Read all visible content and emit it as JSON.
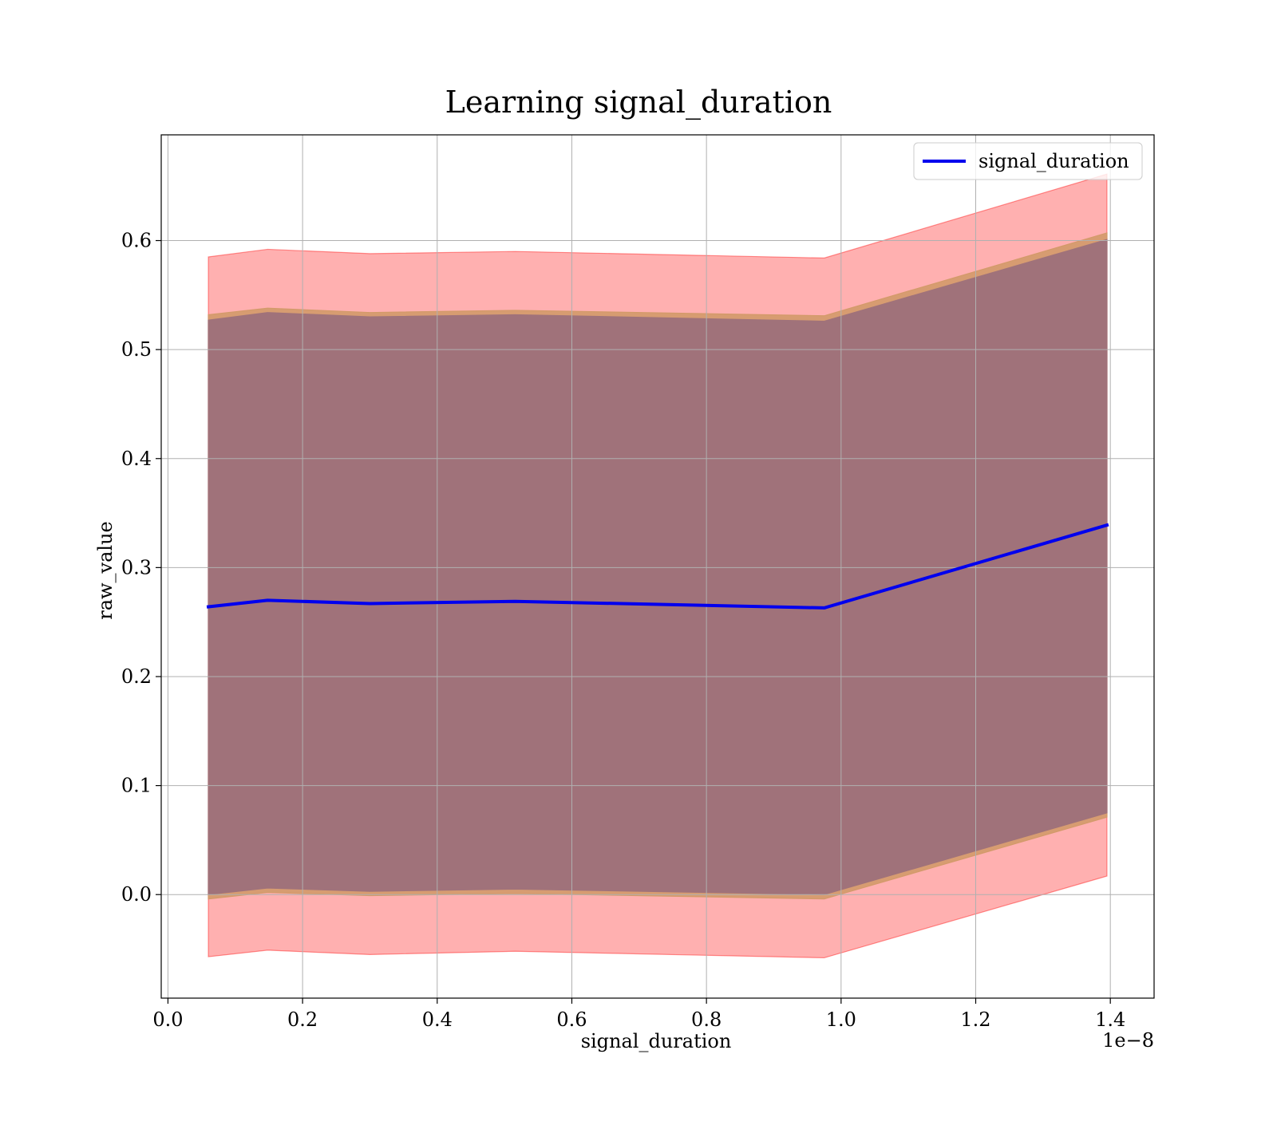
{
  "chart_data": {
    "type": "line",
    "title": "Learning signal_duration",
    "xlabel": "signal_duration",
    "ylabel": "raw_value",
    "x_offset_label": "1e−8",
    "xlim": [
      -0.01,
      1.465
    ],
    "ylim": [
      -0.095,
      0.697
    ],
    "x_ticks": [
      0.0,
      0.2,
      0.4,
      0.6,
      0.8,
      1.0,
      1.2,
      1.4
    ],
    "x_tick_labels": [
      "0.0",
      "0.2",
      "0.4",
      "0.6",
      "0.8",
      "1.0",
      "1.2",
      "1.4"
    ],
    "y_ticks": [
      0.0,
      0.1,
      0.2,
      0.3,
      0.4,
      0.5,
      0.6
    ],
    "y_tick_labels": [
      "0.0",
      "0.1",
      "0.2",
      "0.3",
      "0.4",
      "0.5",
      "0.6"
    ],
    "grid": true,
    "legend_position": "top-right",
    "x": [
      0.06,
      0.148,
      0.3,
      0.516,
      0.975,
      1.395
    ],
    "series": [
      {
        "name": "signal_duration",
        "color": "#0000ee",
        "values": [
          0.264,
          0.27,
          0.267,
          0.269,
          0.263,
          0.339
        ]
      }
    ],
    "bands": [
      {
        "kind": "outer",
        "color": "#ff0000",
        "opacity": 0.31,
        "upper": [
          0.585,
          0.592,
          0.588,
          0.59,
          0.584,
          0.661
        ],
        "lower": [
          -0.057,
          -0.051,
          -0.055,
          -0.052,
          -0.058,
          0.017
        ]
      },
      {
        "kind": "middle",
        "color": "#d39a6a",
        "opacity": 0.9,
        "upper": [
          0.532,
          0.538,
          0.534,
          0.536,
          0.531,
          0.607
        ],
        "lower": [
          -0.004,
          0.002,
          -0.001,
          0.001,
          -0.004,
          0.071
        ]
      },
      {
        "kind": "inner",
        "color": "#a0727a",
        "opacity": 1.0,
        "upper": [
          0.527,
          0.534,
          0.53,
          0.532,
          0.526,
          0.601
        ],
        "lower": [
          0.0,
          0.006,
          0.003,
          0.005,
          0.0,
          0.075
        ]
      }
    ]
  }
}
